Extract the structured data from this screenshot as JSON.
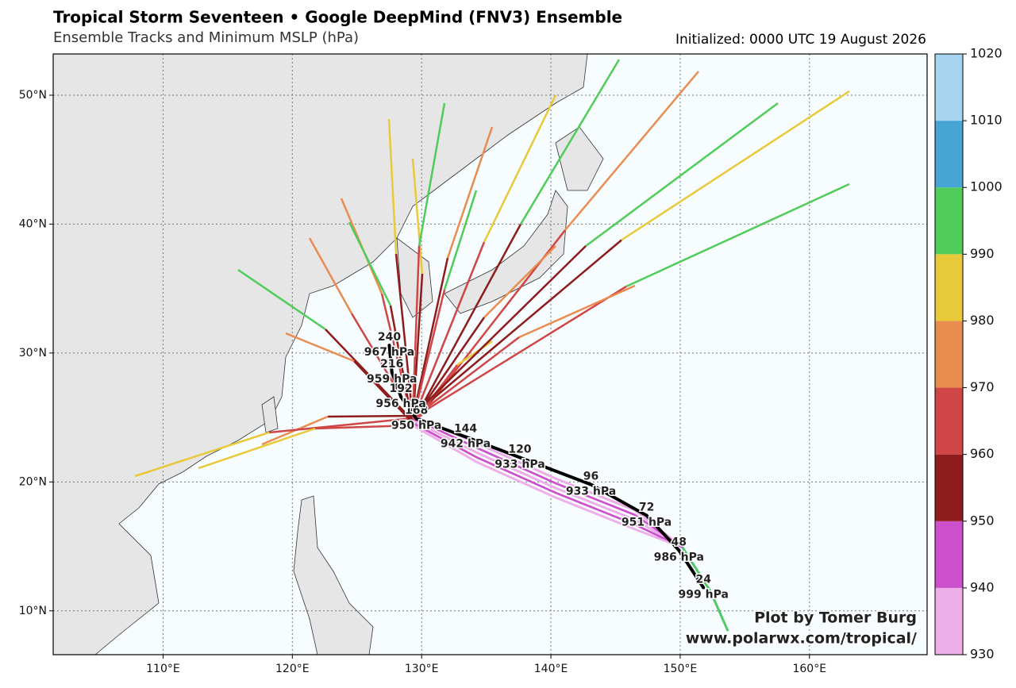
{
  "title": "Tropical Storm Seventeen • Google DeepMind (FNV3) Ensemble",
  "subtitle": "Ensemble Tracks and Minimum MSLP (hPa)",
  "initialized": "Initialized: 0000 UTC 19 August 2026",
  "credit": [
    "Plot by Tomer Burg",
    "www.polarwx.com/tropical/"
  ],
  "map": {
    "xlim": [
      101.5,
      169.1
    ],
    "ylim": [
      6.6,
      53.2
    ],
    "xticks": [
      {
        "value": 110,
        "label": "110°E"
      },
      {
        "value": 120,
        "label": "120°E"
      },
      {
        "value": 130,
        "label": "130°E"
      },
      {
        "value": 140,
        "label": "140°E"
      },
      {
        "value": 150,
        "label": "150°E"
      },
      {
        "value": 160,
        "label": "160°E"
      }
    ],
    "yticks": [
      {
        "value": 10,
        "label": "10°N"
      },
      {
        "value": 20,
        "label": "20°N"
      },
      {
        "value": 30,
        "label": "30°N"
      },
      {
        "value": 40,
        "label": "40°N"
      },
      {
        "value": 50,
        "label": "50°N"
      }
    ],
    "grid": true
  },
  "mean_track": [
    {
      "hour": 24,
      "lon": 151.8,
      "lat": 11.8,
      "mslp": 999,
      "mslp_label": "999 hPa"
    },
    {
      "hour": 48,
      "lon": 149.9,
      "lat": 14.7,
      "mslp": 986,
      "mslp_label": "986 hPa"
    },
    {
      "hour": 72,
      "lon": 147.4,
      "lat": 17.4,
      "mslp": 951,
      "mslp_label": "951 hPa"
    },
    {
      "hour": 96,
      "lon": 143.1,
      "lat": 19.8,
      "mslp": 933,
      "mslp_label": "933 hPa"
    },
    {
      "hour": 120,
      "lon": 137.6,
      "lat": 21.9,
      "mslp": 933,
      "mslp_label": "933 hPa"
    },
    {
      "hour": 144,
      "lon": 133.4,
      "lat": 23.5,
      "mslp": 942,
      "mslp_label": "942 hPa"
    },
    {
      "hour": 168,
      "lon": 129.6,
      "lat": 24.9,
      "mslp": 950,
      "mslp_label": "950 hPa"
    },
    {
      "hour": 192,
      "lon": 128.4,
      "lat": 26.6,
      "mslp": 956,
      "mslp_label": "956 hPa"
    },
    {
      "hour": 216,
      "lon": 127.7,
      "lat": 28.5,
      "mslp": 959,
      "mslp_label": "959 hPa"
    },
    {
      "hour": 240,
      "lon": 127.5,
      "lat": 30.6,
      "mslp": 967,
      "mslp_label": "967 hPa"
    }
  ],
  "colorbar": {
    "lim": [
      930,
      1020
    ],
    "ticks": [
      930,
      940,
      950,
      960,
      970,
      980,
      990,
      1000,
      1010,
      1020
    ],
    "colors": [
      "#eeaee9",
      "#cc4fcc",
      "#8e1c1c",
      "#d04545",
      "#e88c50",
      "#e8c93a",
      "#4fcc5a",
      "#47a5d6",
      "#a7d4ee"
    ]
  }
}
